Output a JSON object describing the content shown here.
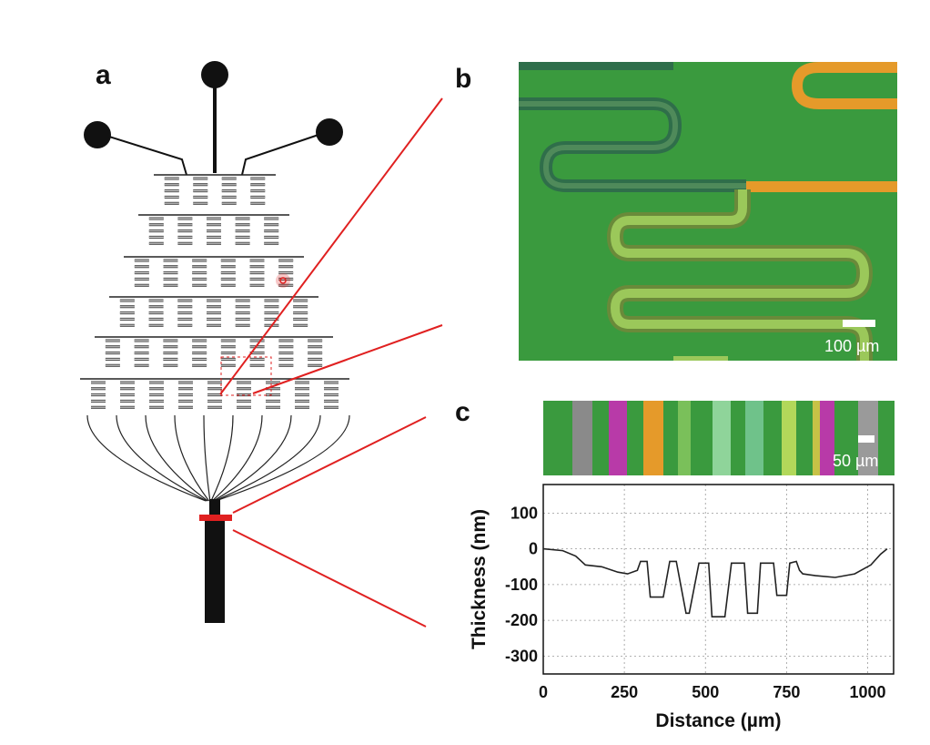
{
  "labels": {
    "a": "a",
    "b": "b",
    "c": "c"
  },
  "panel_b": {
    "scale_bar": "100 µm"
  },
  "panel_c": {
    "scale_bar": "50 µm"
  },
  "colors": {
    "background_green": "#3a9a3e",
    "channel_orange": "#e59a2a",
    "channel_dark": "#2f6e4a",
    "channel_light": "#9bc85a",
    "marker_red": "#e02020",
    "magenta": "#b83aa8",
    "grey": "#8a8a8a"
  },
  "chart_data": {
    "type": "line",
    "xlabel": "Distance (µm)",
    "ylabel": "Thickness (nm)",
    "xlim": [
      0,
      1080
    ],
    "ylim": [
      -350,
      180
    ],
    "xticks": [
      "0",
      "250",
      "500",
      "750",
      "1000"
    ],
    "xtick_values": [
      0,
      250,
      500,
      750,
      1000
    ],
    "yticks": [
      "100",
      "0",
      "-100",
      "-200",
      "-300"
    ],
    "ytick_values": [
      100,
      0,
      -100,
      -200,
      -300
    ],
    "grid": true,
    "series": [
      {
        "x": [
          0,
          60,
          100,
          130,
          180,
          230,
          260,
          290,
          300,
          320,
          330,
          370,
          390,
          400,
          410,
          440,
          450,
          480,
          490,
          510,
          520,
          560,
          580,
          620,
          630,
          660,
          670,
          710,
          720,
          750,
          760,
          780,
          790,
          800,
          840,
          900,
          960,
          1010,
          1040,
          1060
        ],
        "y": [
          0,
          -5,
          -20,
          -45,
          -50,
          -65,
          -70,
          -60,
          -35,
          -35,
          -135,
          -135,
          -35,
          -35,
          -35,
          -180,
          -180,
          -40,
          -40,
          -40,
          -190,
          -190,
          -40,
          -40,
          -180,
          -180,
          -40,
          -40,
          -130,
          -130,
          -40,
          -35,
          -60,
          -70,
          -75,
          -80,
          -70,
          -45,
          -15,
          0
        ]
      }
    ]
  }
}
